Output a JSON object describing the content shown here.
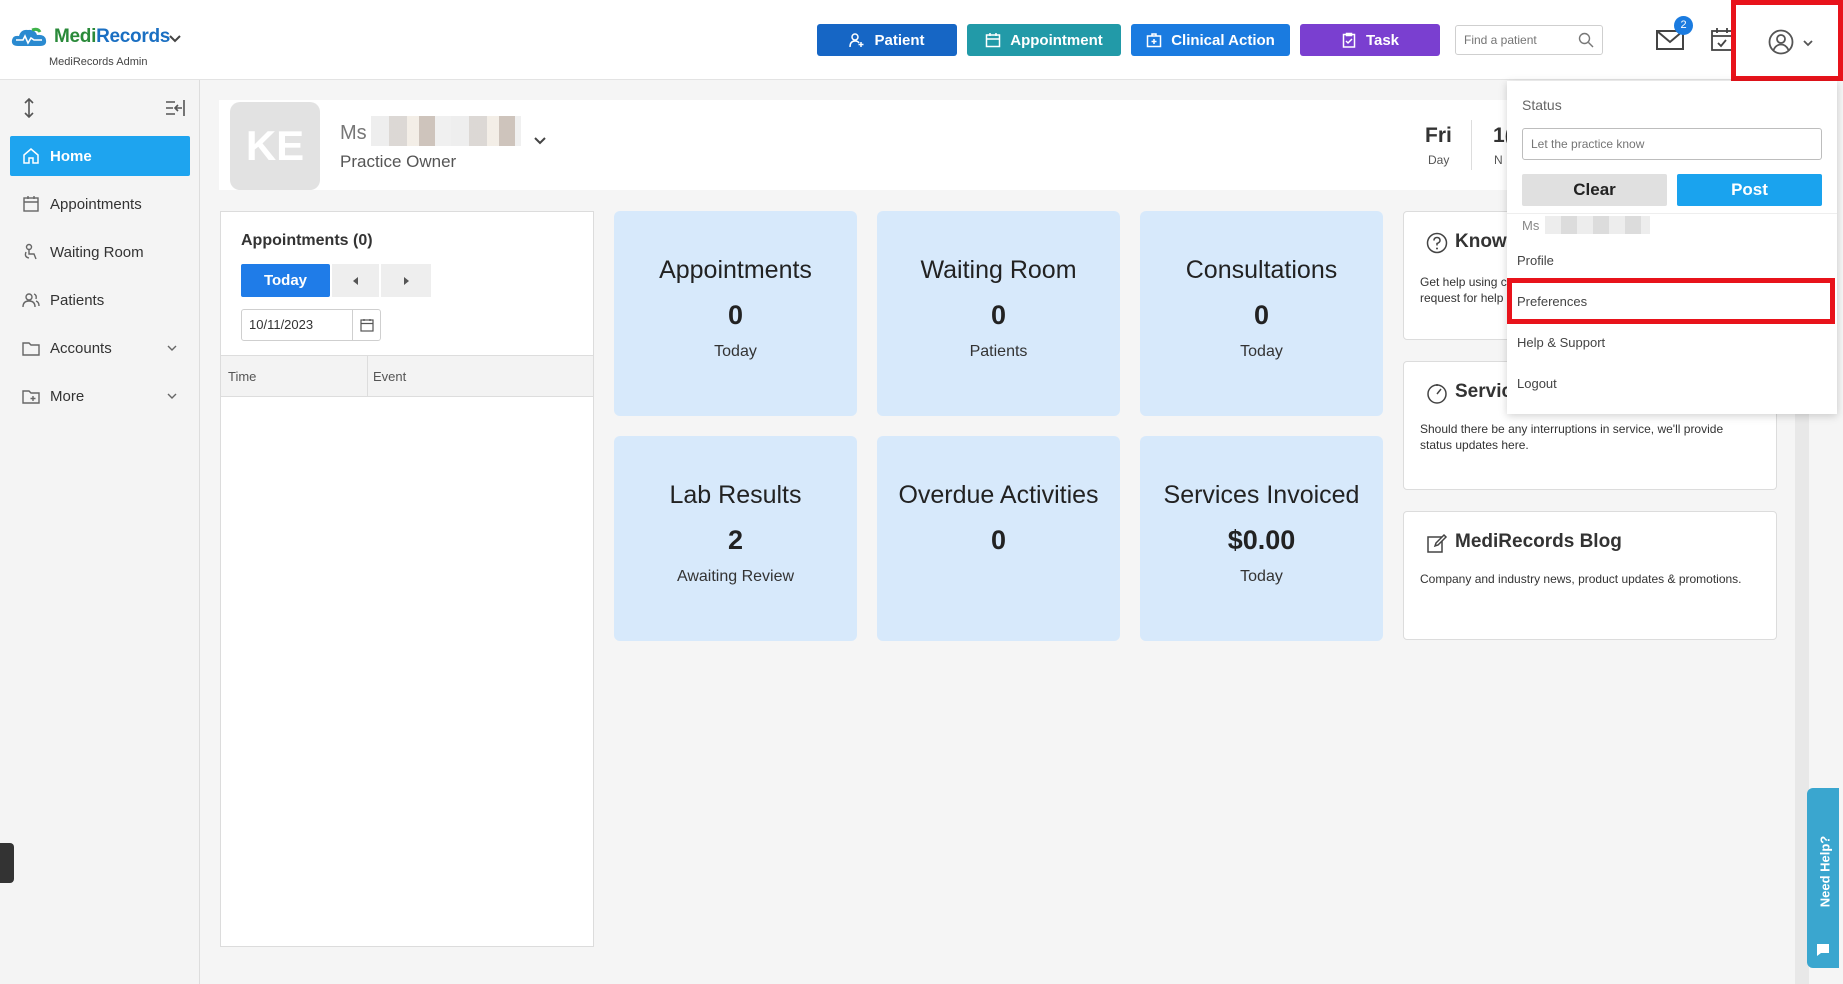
{
  "header": {
    "logo_text_a": "Medi",
    "logo_text_b": "Records",
    "subtitle": "MediRecords Admin",
    "buttons": {
      "patient": "Patient",
      "appointment": "Appointment",
      "clinical_action": "Clinical Action",
      "task": "Task"
    },
    "search_placeholder": "Find a patient",
    "mail_badge": "2"
  },
  "sidebar": {
    "items": [
      {
        "label": "Home"
      },
      {
        "label": "Appointments"
      },
      {
        "label": "Waiting Room"
      },
      {
        "label": "Patients"
      },
      {
        "label": "Accounts"
      },
      {
        "label": "More"
      }
    ]
  },
  "welcome": {
    "avatar_initials": "KE",
    "name_prefix": "Ms",
    "role": "Practice Owner",
    "day_value": "Fri",
    "day_label": "Day",
    "num_value": "1(",
    "num_label": "N"
  },
  "appointments_panel": {
    "title": "Appointments (0)",
    "today_button": "Today",
    "date_value": "10/11/2023",
    "columns": [
      "Time",
      "Event"
    ]
  },
  "tiles": [
    {
      "title": "Appointments",
      "value": "0",
      "sub": "Today"
    },
    {
      "title": "Waiting Room",
      "value": "0",
      "sub": "Patients"
    },
    {
      "title": "Consultations",
      "value": "0",
      "sub": "Today"
    },
    {
      "title": "Lab Results",
      "value": "2",
      "sub": "Awaiting Review"
    },
    {
      "title": "Overdue Activities",
      "value": "0",
      "sub": ""
    },
    {
      "title": "Services Invoiced",
      "value": "$0.00",
      "sub": "Today"
    }
  ],
  "cards": {
    "knowledge": {
      "title": "Knowl",
      "body_line1": "Get help using c",
      "body_line2": "request for help"
    },
    "service": {
      "title": "Servic",
      "body": "Should there be any interruptions in service, we'll provide status updates here."
    },
    "blog": {
      "title": "MediRecords Blog",
      "body": "Company and industry news, product updates & promotions."
    }
  },
  "dropdown": {
    "status_label": "Status",
    "status_placeholder": "Let the practice know",
    "clear": "Clear",
    "post": "Post",
    "name_prefix": "Ms",
    "items": [
      "Profile",
      "Preferences",
      "Help & Support",
      "Logout"
    ]
  },
  "need_help": "Need Help?"
}
